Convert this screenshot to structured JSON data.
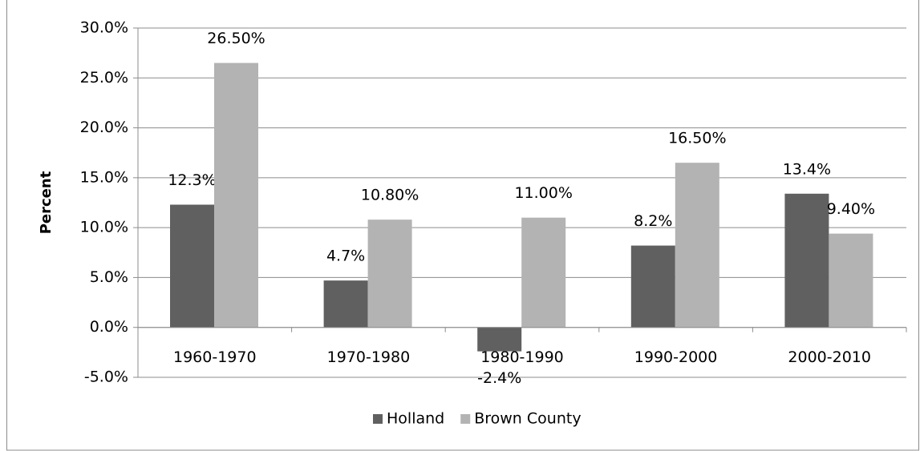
{
  "chart_data": {
    "type": "bar",
    "y_label": "Percent",
    "categories": [
      "1960-1970",
      "1970-1980",
      "1980-1990",
      "1990-2000",
      "2000-2010"
    ],
    "series": [
      {
        "name": "Holland",
        "color": "#606060",
        "values": [
          12.3,
          4.7,
          -2.4,
          8.2,
          13.4
        ],
        "value_labels": [
          "12.3%",
          "4.7%",
          "-2.4%",
          "8.2%",
          "13.4%"
        ]
      },
      {
        "name": "Brown County",
        "color": "#b3b3b3",
        "values": [
          26.5,
          10.8,
          11.0,
          16.5,
          9.4
        ],
        "value_labels": [
          "26.50%",
          "10.80%",
          "11.00%",
          "16.50%",
          "9.40%"
        ]
      }
    ],
    "ylim": [
      -5,
      30
    ],
    "yticks": [
      {
        "value": -5,
        "label": "-5.0%"
      },
      {
        "value": 0,
        "label": "0.0%"
      },
      {
        "value": 5,
        "label": "5.0%"
      },
      {
        "value": 10,
        "label": "10.0%"
      },
      {
        "value": 15,
        "label": "15.0%"
      },
      {
        "value": 20,
        "label": "20.0%"
      },
      {
        "value": 25,
        "label": "25.0%"
      },
      {
        "value": 30,
        "label": "30.0%"
      }
    ],
    "grid": true,
    "legend": "bottom"
  }
}
